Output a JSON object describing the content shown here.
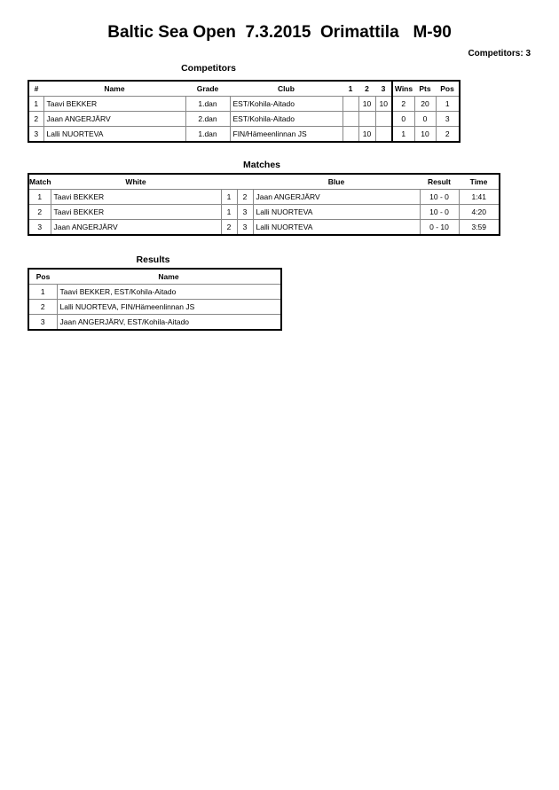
{
  "title": "Baltic Sea Open  7.3.2015  Orimattila   M-90",
  "competitors_count": "Competitors: 3",
  "competitors": {
    "heading": "Competitors",
    "headers": [
      "#",
      "Name",
      "Grade",
      "Club",
      "1",
      "2",
      "3",
      "Wins",
      "Pts",
      "Pos"
    ],
    "rows": [
      [
        "1",
        "Taavi BEKKER",
        "1.dan",
        "EST/Kohila-Aitado",
        "",
        "10",
        "10",
        "2",
        "20",
        "1"
      ],
      [
        "2",
        "Jaan ANGERJÄRV",
        "2.dan",
        "EST/Kohila-Aitado",
        "",
        "",
        "",
        "0",
        "0",
        "3"
      ],
      [
        "3",
        "Lalli NUORTEVA",
        "1.dan",
        "FIN/Hämeenlinnan JS",
        "",
        "10",
        "",
        "1",
        "10",
        "2"
      ]
    ]
  },
  "matches": {
    "heading": "Matches",
    "headers": [
      "Match",
      "White",
      "",
      "",
      "Blue",
      "Result",
      "Time"
    ],
    "rows": [
      [
        "1",
        "Taavi BEKKER",
        "1",
        "2",
        "Jaan ANGERJÄRV",
        "10 - 0",
        "1:41"
      ],
      [
        "2",
        "Taavi BEKKER",
        "1",
        "3",
        "Lalli NUORTEVA",
        "10 - 0",
        "4:20"
      ],
      [
        "3",
        "Jaan ANGERJÄRV",
        "2",
        "3",
        "Lalli NUORTEVA",
        "0 - 10",
        "3:59"
      ]
    ]
  },
  "results": {
    "heading": "Results",
    "headers": [
      "Pos",
      "Name"
    ],
    "rows": [
      [
        "1",
        "Taavi BEKKER, EST/Kohila-Aitado"
      ],
      [
        "2",
        "Lalli NUORTEVA, FIN/Hämeenlinnan JS"
      ],
      [
        "3",
        "Jaan ANGERJÄRV, EST/Kohila-Aitado"
      ]
    ]
  }
}
